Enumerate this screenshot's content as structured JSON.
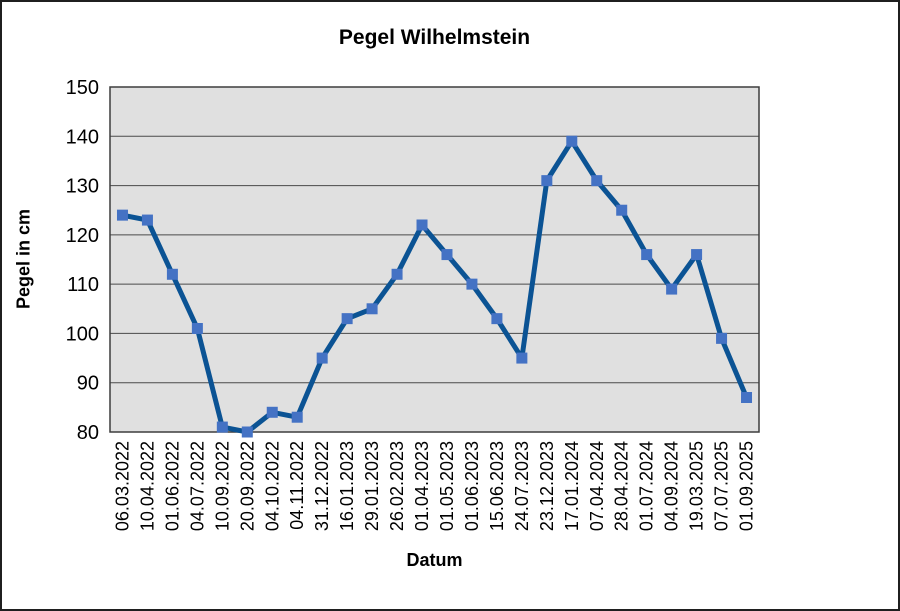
{
  "chart_data": {
    "type": "line",
    "title": "Pegel Wilhelmstein",
    "xlabel": "Datum",
    "ylabel": "Pegel in cm",
    "ylim": [
      80,
      150
    ],
    "ytick_step": 10,
    "yticks": [
      80,
      90,
      100,
      110,
      120,
      130,
      140,
      150
    ],
    "grid": true,
    "legend": false,
    "marker_shape": "square",
    "categories": [
      "06.03.2022",
      "10.04.2022",
      "01.06.2022",
      "04.07.2022",
      "10.09.2022",
      "20.09.2022",
      "04.10.2022",
      "04.11.2022",
      "31.12.2022",
      "16.01.2023",
      "29.01.2023",
      "26.02.2023",
      "01.04.2023",
      "01.05.2023",
      "01.06.2023",
      "15.06.2023",
      "24.07.2023",
      "23.12.2023",
      "17.01.2024",
      "07.04.2024",
      "28.04.2024",
      "01.07.2024",
      "04.09.2024",
      "19.03.2025",
      "07.07.2025",
      "01.09.2025"
    ],
    "values": [
      124,
      123,
      112,
      101,
      81,
      80,
      84,
      83,
      95,
      103,
      105,
      112,
      122,
      116,
      110,
      103,
      95,
      131,
      139,
      131,
      125,
      116,
      109,
      116,
      99,
      87
    ],
    "colors": {
      "line": "#0B5394",
      "marker": "#4472C4",
      "plot_background": "#E0E0E0",
      "gridline": "#4a4a4a",
      "plot_border": "#3d3d3d",
      "text": "#000000",
      "frame_border": "#1f1f1f"
    }
  }
}
